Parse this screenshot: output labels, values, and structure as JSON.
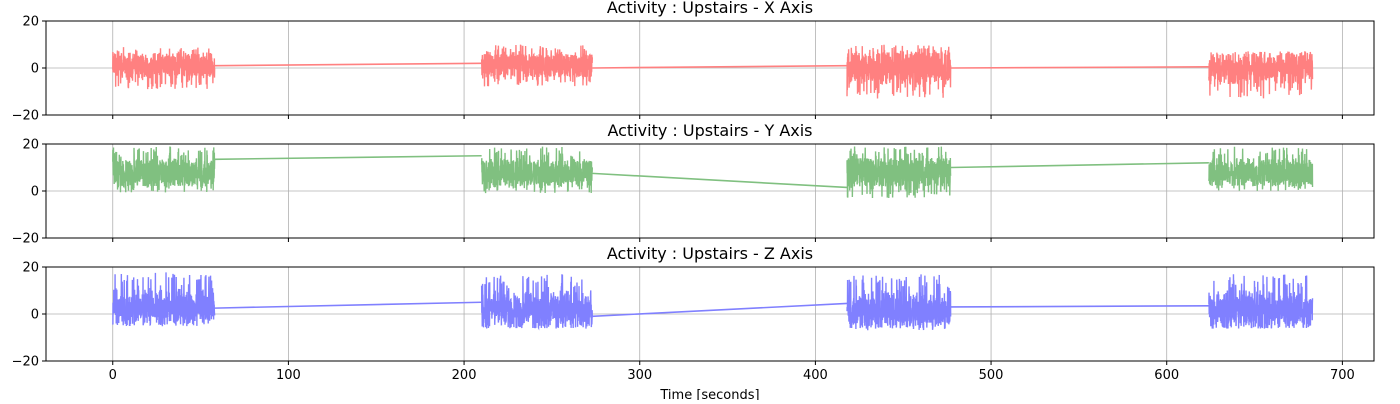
{
  "chart_data": [
    {
      "type": "line",
      "title": "Activity : Upstairs - X Axis",
      "color": "#ff8080",
      "xlim": [
        -38,
        718
      ],
      "ylim": [
        -20,
        20
      ],
      "yticks": [
        -20,
        0,
        20
      ],
      "grid": true,
      "bursts": [
        {
          "x": [
            0,
            58
          ],
          "y_center": 1,
          "y_range": [
            -9,
            9
          ]
        },
        {
          "x": [
            210,
            273
          ],
          "y_center": 1,
          "y_range": [
            -8,
            10
          ]
        },
        {
          "x": [
            418,
            477
          ],
          "y_center": 0,
          "y_range": [
            -13,
            10
          ]
        },
        {
          "x": [
            624,
            683
          ],
          "y_center": 0,
          "y_range": [
            -13,
            7
          ]
        }
      ],
      "connectors": [
        {
          "x": [
            58,
            210
          ],
          "y": [
            1,
            2
          ]
        },
        {
          "x": [
            273,
            418
          ],
          "y": [
            0,
            1
          ]
        },
        {
          "x": [
            477,
            624
          ],
          "y": [
            0,
            0.5
          ]
        }
      ]
    },
    {
      "type": "line",
      "title": "Activity : Upstairs - Y Axis",
      "color": "#80c080",
      "xlim": [
        -38,
        718
      ],
      "ylim": [
        -20,
        20
      ],
      "yticks": [
        -20,
        0,
        20
      ],
      "grid": true,
      "bursts": [
        {
          "x": [
            0,
            58
          ],
          "y_center": 8,
          "y_range": [
            -1,
            19
          ]
        },
        {
          "x": [
            210,
            273
          ],
          "y_center": 8,
          "y_range": [
            -1,
            19
          ]
        },
        {
          "x": [
            418,
            477
          ],
          "y_center": 8,
          "y_range": [
            -3,
            19
          ]
        },
        {
          "x": [
            624,
            683
          ],
          "y_center": 8,
          "y_range": [
            0,
            19
          ]
        }
      ],
      "connectors": [
        {
          "x": [
            58,
            210
          ],
          "y": [
            13.5,
            15
          ]
        },
        {
          "x": [
            273,
            418
          ],
          "y": [
            7.5,
            1.5
          ]
        },
        {
          "x": [
            477,
            624
          ],
          "y": [
            10,
            12
          ]
        }
      ]
    },
    {
      "type": "line",
      "title": "Activity : Upstairs - Z Axis",
      "color": "#8080ff",
      "xlim": [
        -38,
        718
      ],
      "ylim": [
        -20,
        20
      ],
      "yticks": [
        -20,
        0,
        20
      ],
      "xticks": [
        0,
        100,
        200,
        300,
        400,
        500,
        600,
        700
      ],
      "xlabel": "Time [seconds]",
      "grid": true,
      "bursts": [
        {
          "x": [
            0,
            58
          ],
          "y_center": 3,
          "y_range": [
            -5,
            18
          ]
        },
        {
          "x": [
            210,
            273
          ],
          "y_center": 2,
          "y_range": [
            -6,
            17
          ]
        },
        {
          "x": [
            418,
            477
          ],
          "y_center": 2,
          "y_range": [
            -7,
            17
          ]
        },
        {
          "x": [
            624,
            683
          ],
          "y_center": 2,
          "y_range": [
            -6,
            17
          ]
        }
      ],
      "connectors": [
        {
          "x": [
            58,
            210
          ],
          "y": [
            2.5,
            5
          ]
        },
        {
          "x": [
            273,
            418
          ],
          "y": [
            -1,
            4.5
          ]
        },
        {
          "x": [
            477,
            624
          ],
          "y": [
            3,
            3.5
          ]
        }
      ]
    }
  ]
}
